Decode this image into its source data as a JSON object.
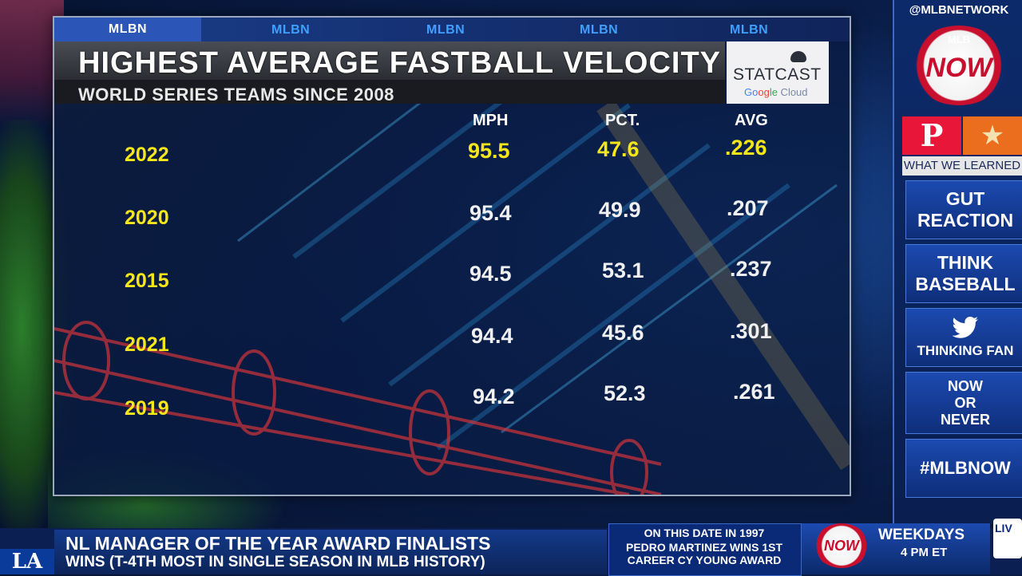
{
  "graphic": {
    "network_tags": [
      "MLBN",
      "MLBN",
      "MLBN",
      "MLBN",
      "MLBN"
    ],
    "title": "HIGHEST AVERAGE FASTBALL VELOCITY",
    "subtitle": "WORLD SERIES TEAMS SINCE 2008",
    "sponsor_main": "STATCAST",
    "sponsor_sub": [
      "Go",
      "og",
      "le",
      " Cloud"
    ],
    "columns": [
      "MPH",
      "PCT.",
      "AVG"
    ],
    "rows": [
      {
        "year": "2022",
        "mph": "95.5",
        "pct": "47.6",
        "avg": ".226"
      },
      {
        "year": "2020",
        "mph": "95.4",
        "pct": "49.9",
        "avg": ".207"
      },
      {
        "year": "2015",
        "mph": "94.5",
        "pct": "53.1",
        "avg": ".237"
      },
      {
        "year": "2021",
        "mph": "94.4",
        "pct": "45.6",
        "avg": ".301"
      },
      {
        "year": "2019",
        "mph": "94.2",
        "pct": "52.3",
        "avg": ".261"
      }
    ],
    "highlight_color": "#f5e61a"
  },
  "sidebar": {
    "handle": "@MLBNETWORK",
    "logo_top": "MLB",
    "logo_text": "NOW",
    "team_left_letter": "P",
    "team_right_symbol": "★",
    "what_we_learned": "WHAT WE LEARNED",
    "buttons": [
      {
        "lines": [
          "GUT",
          "REACTION"
        ]
      },
      {
        "lines": [
          "THINK",
          "BASEBALL"
        ]
      },
      {
        "icon": "twitter-icon",
        "lines": [
          "THINKING FAN"
        ]
      },
      {
        "lines": [
          "NOW",
          "OR",
          "NEVER"
        ]
      },
      {
        "lines": [
          "#MLBNOW"
        ]
      }
    ]
  },
  "ticker": {
    "logo": "LA",
    "headline": "NL MANAGER OF THE YEAR AWARD FINALISTS",
    "subline": "WINS (T-4TH MOST IN SINGLE SEASON IN MLB HISTORY)",
    "on_this_date_head": "ON THIS DATE IN 1997",
    "on_this_date_lines": [
      "PEDRO MARTINEZ WINS 1ST",
      "CAREER CY YOUNG AWARD"
    ],
    "promo_logo": "NOW",
    "promo_days": "WEEKDAYS",
    "promo_time": "4 PM ET",
    "live_label": "LIV"
  }
}
